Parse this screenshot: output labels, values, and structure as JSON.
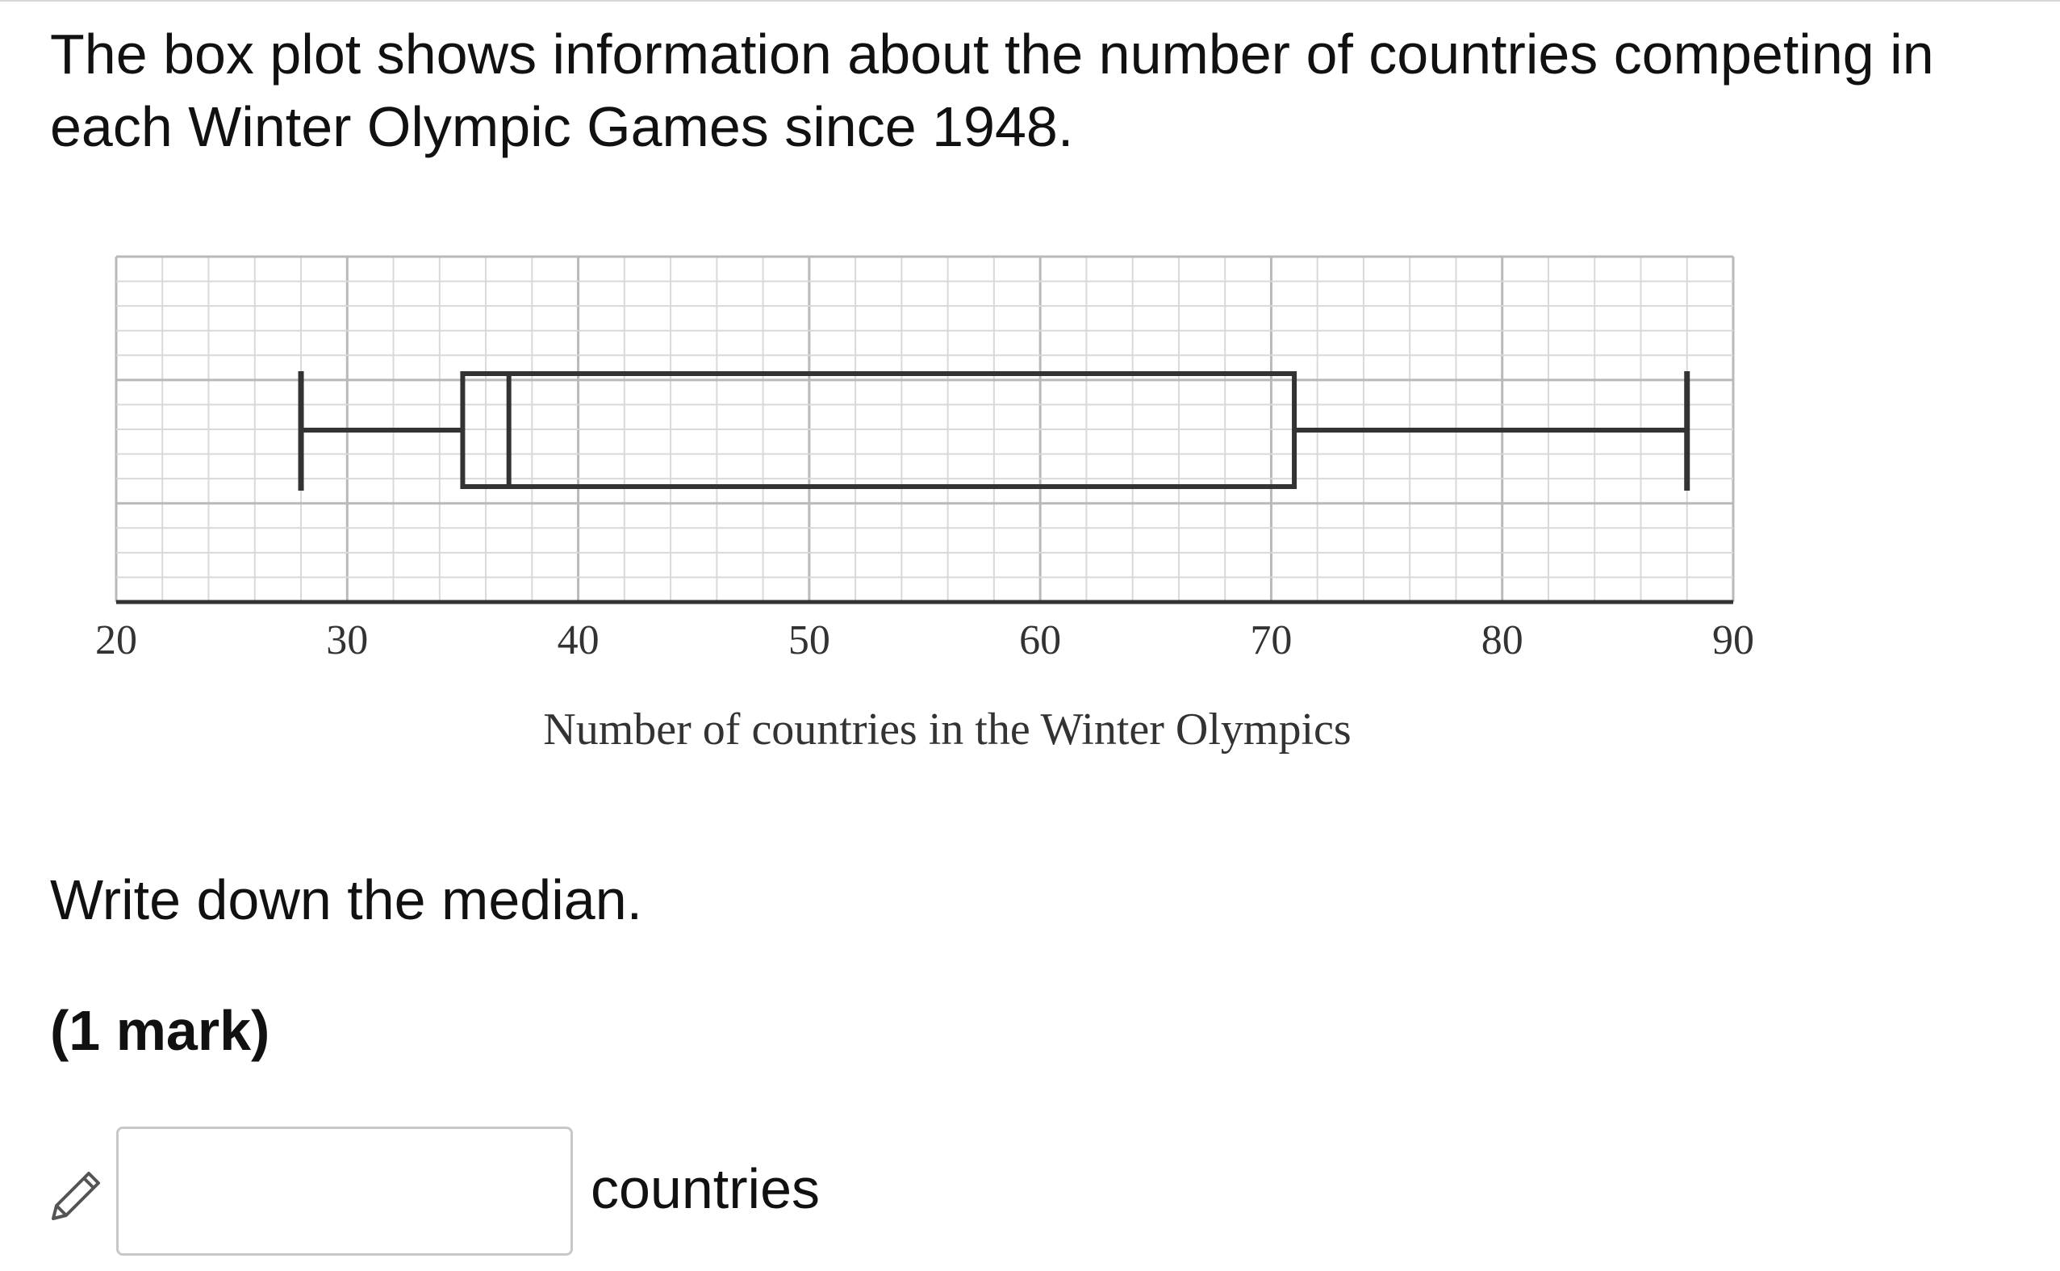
{
  "question": {
    "intro": "The box plot shows information about the number of countries competing in each Winter Olympic Games since 1948.",
    "prompt": "Write down the median.",
    "marks": "(1 mark)"
  },
  "answer": {
    "value": "",
    "placeholder": "",
    "unit": "countries"
  },
  "icons": {
    "edit": "pencil-icon"
  },
  "colors": {
    "grid_major": "#b9b9b9",
    "grid_minor": "#d9d9d9",
    "box_stroke": "#333333",
    "text": "#111111"
  },
  "chart_data": {
    "type": "box",
    "title": "",
    "xlabel": "Number of countries in the Winter Olympics",
    "ylabel": "",
    "xlim": [
      20,
      90
    ],
    "xticks": [
      20,
      30,
      40,
      50,
      60,
      70,
      80,
      90
    ],
    "grid": true,
    "box": {
      "min": 28,
      "q1": 35,
      "median": 37,
      "q3": 71,
      "max": 88
    }
  }
}
